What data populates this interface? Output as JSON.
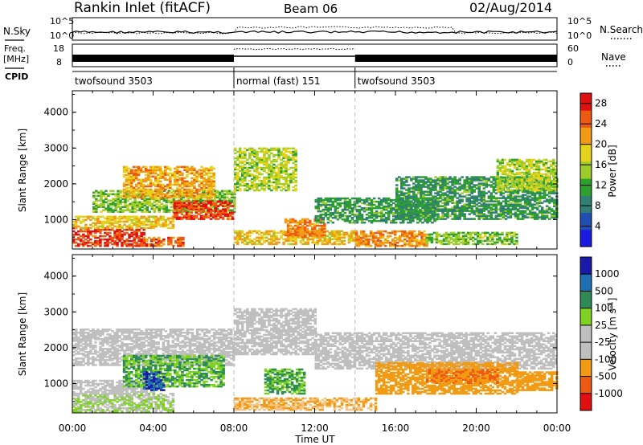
{
  "header": {
    "station": "Rankin Inlet (fitACF)",
    "beam": "Beam 06",
    "date": "02/Aug/2014"
  },
  "side_labels": {
    "nsky": "N.Sky",
    "freq": "Freq.",
    "freq_unit": "[MHz]",
    "cpid": "CPID",
    "nsearch": "N.Search",
    "nave": "Nave"
  },
  "noise_panel": {
    "left_ticks": [
      "10^5",
      "10^0"
    ],
    "right_ticks": [
      "10^5",
      "10^0"
    ]
  },
  "freq_panel": {
    "left_ticks": [
      "18",
      "8"
    ],
    "right_ticks": [
      "60",
      "0"
    ]
  },
  "cpid_segments": [
    {
      "label": "twofsound 3503",
      "start_h": 0,
      "end_h": 8
    },
    {
      "label": "normal (fast) 151",
      "start_h": 8,
      "end_h": 14
    },
    {
      "label": "twofsound 3503",
      "start_h": 14,
      "end_h": 24
    }
  ],
  "colors": {
    "power_scale": [
      "#1a1ae0",
      "#1f4fb3",
      "#2f7f72",
      "#2ea02e",
      "#9ccc2a",
      "#e6d21a",
      "#f29a12",
      "#ee5a12",
      "#e01010"
    ],
    "velocity_scale": [
      "#e01010",
      "#ee5a12",
      "#f29a12",
      "#f5c58a",
      "#bfbfbf",
      "#bfbfbf",
      "#7ed321",
      "#2e8b57",
      "#1f6fb3",
      "#1a1aaa"
    ]
  },
  "chart_data": [
    {
      "type": "heatmap",
      "title": "Power",
      "xlabel": "Time UT",
      "ylabel": "Slant Range [km]",
      "x_ticks": [
        "00:00",
        "04:00",
        "08:00",
        "12:00",
        "16:00",
        "20:00",
        "00:00"
      ],
      "xlim_hours": [
        0,
        24
      ],
      "y_ticks": [
        "1000",
        "2000",
        "3000",
        "4000"
      ],
      "ylim_km": [
        180,
        4600
      ],
      "colorbar_label": "Power [dB]",
      "colorbar_ticks": [
        "4",
        "8",
        "12",
        "16",
        "20",
        "24",
        "28"
      ],
      "colorbar_range": [
        0,
        30
      ],
      "regions": [
        {
          "t0": 0.0,
          "t1": 3.5,
          "r0": 250,
          "r1": 750,
          "v": 28
        },
        {
          "t0": 3.5,
          "t1": 5.5,
          "r0": 250,
          "r1": 500,
          "v": 26
        },
        {
          "t0": 0.0,
          "t1": 5.0,
          "r0": 750,
          "r1": 1100,
          "v": 20
        },
        {
          "t0": 1.0,
          "t1": 8.0,
          "r0": 1200,
          "r1": 1800,
          "v": 14
        },
        {
          "t0": 2.5,
          "t1": 7.0,
          "r0": 1600,
          "r1": 2500,
          "v": 22
        },
        {
          "t0": 5.0,
          "t1": 8.0,
          "r0": 1000,
          "r1": 1500,
          "v": 28
        },
        {
          "t0": 8.0,
          "t1": 11.0,
          "r0": 1800,
          "r1": 3000,
          "v": 16
        },
        {
          "t0": 8.0,
          "t1": 14.0,
          "r0": 300,
          "r1": 700,
          "v": 20
        },
        {
          "t0": 10.5,
          "t1": 12.5,
          "r0": 500,
          "r1": 1000,
          "v": 24
        },
        {
          "t0": 12.0,
          "t1": 18.0,
          "r0": 900,
          "r1": 1600,
          "v": 10
        },
        {
          "t0": 14.0,
          "t1": 17.5,
          "r0": 250,
          "r1": 700,
          "v": 24
        },
        {
          "t0": 17.5,
          "t1": 22.0,
          "r0": 300,
          "r1": 650,
          "v": 14
        },
        {
          "t0": 16.0,
          "t1": 24.0,
          "r0": 1000,
          "r1": 2200,
          "v": 10
        },
        {
          "t0": 21.0,
          "t1": 24.0,
          "r0": 1800,
          "r1": 2700,
          "v": 16
        }
      ]
    },
    {
      "type": "heatmap",
      "title": "Velocity",
      "xlabel": "Time UT",
      "ylabel": "Slant Range [km]",
      "x_ticks": [
        "00:00",
        "04:00",
        "08:00",
        "12:00",
        "16:00",
        "20:00",
        "00:00"
      ],
      "xlim_hours": [
        0,
        24
      ],
      "y_ticks": [
        "1000",
        "2000",
        "3000",
        "4000"
      ],
      "ylim_km": [
        180,
        4600
      ],
      "colorbar_label": "Velocity [m s^-1]",
      "colorbar_ticks": [
        "1000",
        "500",
        "100",
        "25",
        "-25",
        "-100",
        "-500",
        "-1000"
      ],
      "regions": [
        {
          "t0": 0.0,
          "t1": 5.0,
          "r0": 200,
          "r1": 700,
          "v": 25
        },
        {
          "t0": 0.0,
          "t1": 4.0,
          "r0": 700,
          "r1": 1100,
          "v": 0
        },
        {
          "t0": 0.0,
          "t1": 8.0,
          "r0": 1500,
          "r1": 2500,
          "v": 0
        },
        {
          "t0": 2.5,
          "t1": 7.5,
          "r0": 900,
          "r1": 1800,
          "v": 100
        },
        {
          "t0": 3.5,
          "t1": 4.5,
          "r0": 800,
          "r1": 1300,
          "v": 1000
        },
        {
          "t0": 8.0,
          "t1": 12.0,
          "r0": 1800,
          "r1": 3100,
          "v": 0
        },
        {
          "t0": 9.5,
          "t1": 11.5,
          "r0": 700,
          "r1": 1400,
          "v": 100
        },
        {
          "t0": 8.0,
          "t1": 15.0,
          "r0": 250,
          "r1": 600,
          "v": -100
        },
        {
          "t0": 12.0,
          "t1": 24.0,
          "r0": 1400,
          "r1": 2400,
          "v": 0
        },
        {
          "t0": 15.0,
          "t1": 22.0,
          "r0": 700,
          "r1": 1600,
          "v": -200
        },
        {
          "t0": 17.5,
          "t1": 21.0,
          "r0": 1000,
          "r1": 1400,
          "v": -500
        },
        {
          "t0": 22.0,
          "t1": 24.0,
          "r0": 800,
          "r1": 1300,
          "v": -300
        }
      ]
    }
  ]
}
